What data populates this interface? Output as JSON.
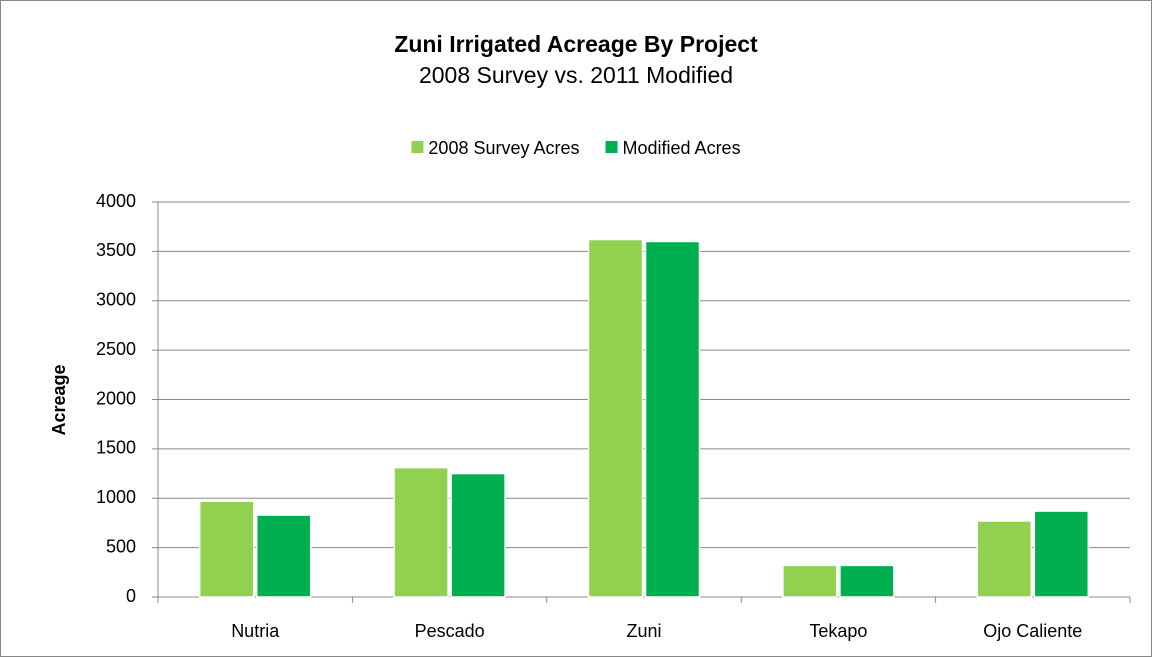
{
  "chart_data": {
    "type": "bar",
    "title": "Zuni Irrigated Acreage By Project",
    "subtitle": "2008 Survey vs. 2011 Modified",
    "y_label": "Acreage",
    "categories": [
      "Nutria",
      "Pescado",
      "Zuni",
      "Tekapo",
      "Ojo Caliente"
    ],
    "series": [
      {
        "name": "2008 Survey Acres",
        "color": "#92d050",
        "values": [
          970,
          1310,
          3620,
          320,
          770
        ]
      },
      {
        "name": "Modified Acres",
        "color": "#00b050",
        "values": [
          830,
          1250,
          3600,
          320,
          870
        ]
      }
    ],
    "ylim": [
      0,
      4000
    ],
    "yticks": [
      0,
      500,
      1000,
      1500,
      2000,
      2500,
      3000,
      3500,
      4000
    ],
    "grid": true,
    "legend": "top"
  }
}
